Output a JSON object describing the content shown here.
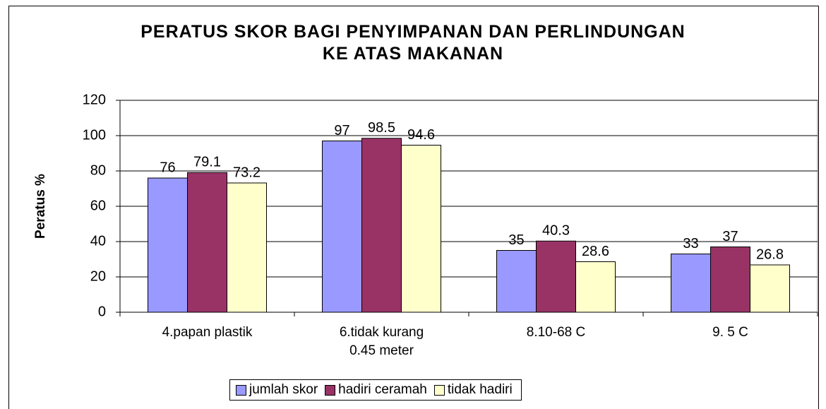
{
  "chart_data": {
    "type": "bar",
    "title": "PERATUS SKOR BAGI PENYIMPANAN DAN PERLINDUNGAN KE ATAS MAKANAN",
    "y_label": "Peratus %",
    "categories": [
      "4.papan plastik",
      "6.tidak kurang 0.45 meter",
      "8.10-68 C",
      "9. 5 C"
    ],
    "series": [
      {
        "name": "jumlah skor",
        "color": "#9999ff",
        "values": [
          76,
          97,
          35,
          33
        ]
      },
      {
        "name": "hadiri ceramah",
        "color": "#993366",
        "values": [
          79.1,
          98.5,
          40.3,
          37
        ]
      },
      {
        "name": "tidak hadiri",
        "color": "#ffffcc",
        "values": [
          73.2,
          94.6,
          28.6,
          26.8
        ]
      }
    ],
    "ylim": [
      0,
      120
    ],
    "yticks": [
      0,
      20,
      40,
      60,
      80,
      100,
      120
    ],
    "grid": true,
    "legend": "bottom"
  }
}
